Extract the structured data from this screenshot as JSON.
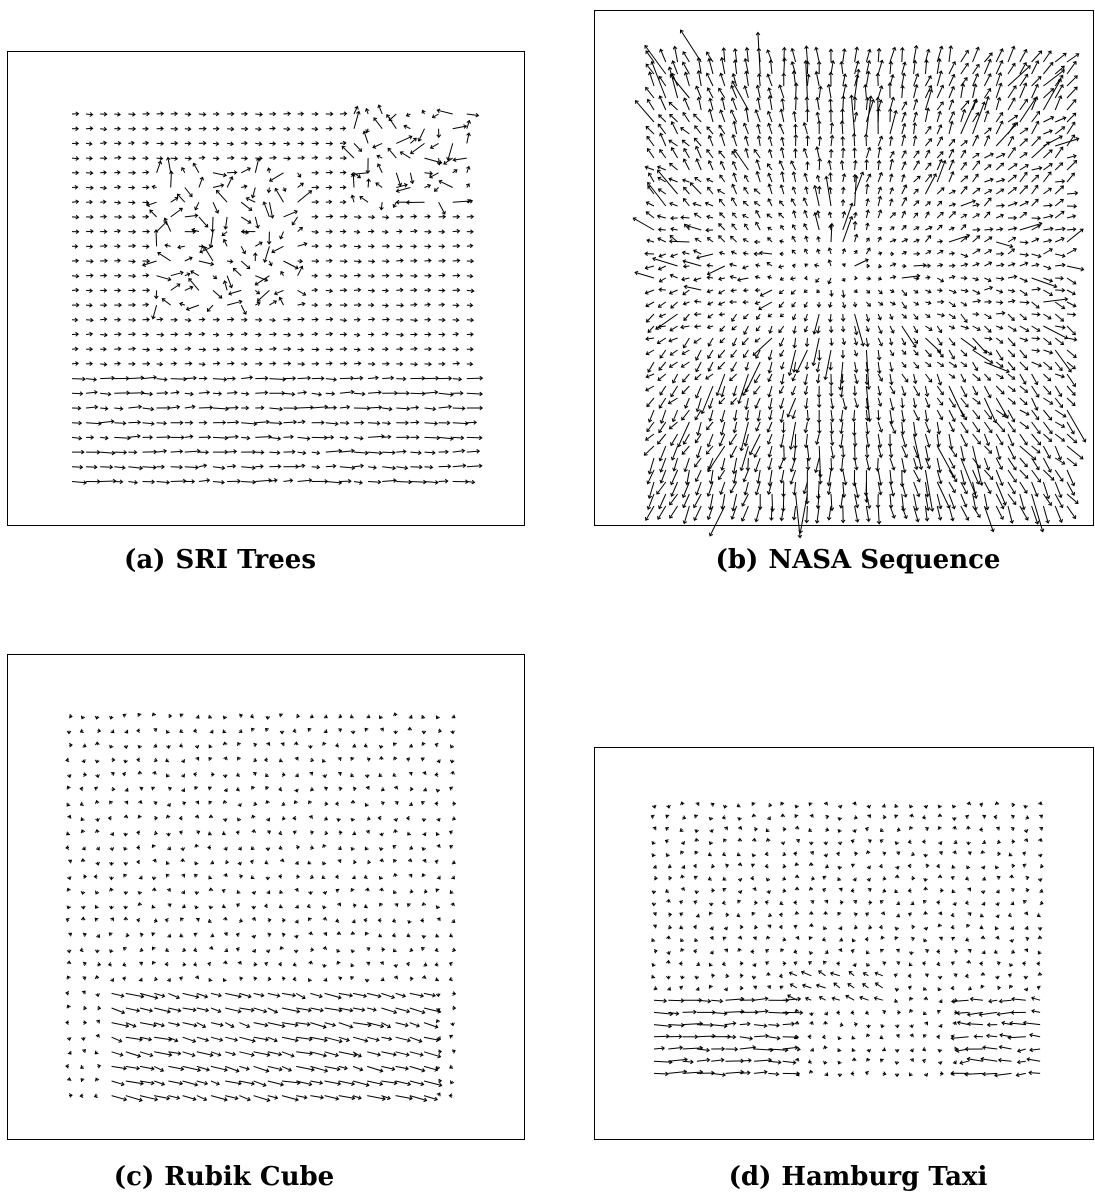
{
  "panels": [
    {
      "id": "a",
      "label": "(a)",
      "title": "SRI Trees",
      "style": "trees"
    },
    {
      "id": "b",
      "label": "(b)",
      "title": "NASA Sequence",
      "style": "nasa"
    },
    {
      "id": "c",
      "label": "(c)",
      "title": "Rubik Cube",
      "style": "rubik"
    },
    {
      "id": "d",
      "label": "(d)",
      "title": "Hamburg Taxi",
      "style": "taxi"
    }
  ],
  "colors": {
    "frame": "#000000",
    "vector": "#000000",
    "background": "#ffffff"
  }
}
